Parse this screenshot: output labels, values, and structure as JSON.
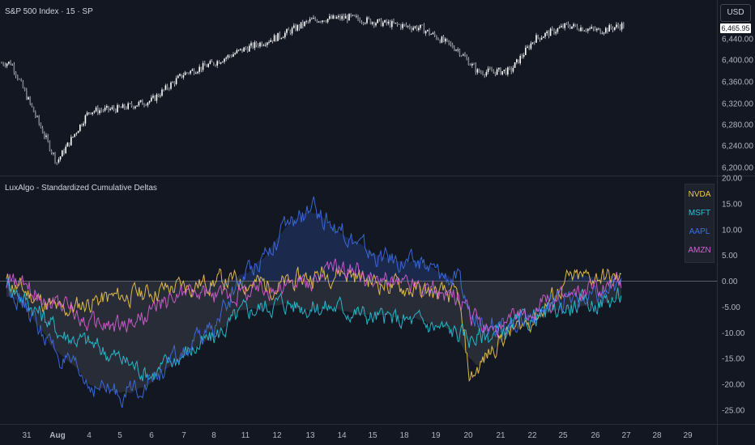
{
  "price_pane": {
    "title": "S&P 500 Index · 15 · SP",
    "currency_label": "USD",
    "last_price": "6,465.95",
    "y_axis_labels": [
      "6,440.00",
      "6,400.00",
      "6,360.00",
      "6,320.00",
      "6,280.00",
      "6,240.00",
      "6,200.00"
    ]
  },
  "indicator_pane": {
    "title": "LuxAlgo - Standardized Cumulative Deltas",
    "y_axis_labels": [
      "20.00",
      "15.00",
      "10.00",
      "5.00",
      "0.00",
      "-5.00",
      "-10.00",
      "-15.00",
      "-20.00",
      "-25.00"
    ]
  },
  "x_axis": {
    "labels": [
      "31",
      "Aug",
      "4",
      "5",
      "6",
      "7",
      "8",
      "11",
      "12",
      "13",
      "14",
      "15",
      "18",
      "19",
      "20",
      "21",
      "22",
      "25",
      "26",
      "27",
      "28",
      "29"
    ]
  },
  "legend": [
    {
      "label": "NVDA",
      "color": "#f2c94c"
    },
    {
      "label": "MSFT",
      "color": "#26c6da"
    },
    {
      "label": "AAPL",
      "color": "#3d6fe8"
    },
    {
      "label": "AMZN",
      "color": "#d65fd6"
    }
  ],
  "chart_data": [
    {
      "type": "candlestick",
      "title": "S&P 500 Index · 15 · SP",
      "ylim": [
        6180,
        6480
      ],
      "x": [
        "31",
        "Aug",
        "4",
        "5",
        "6",
        "7",
        "8",
        "11",
        "12",
        "13",
        "14",
        "15",
        "18",
        "19",
        "20",
        "21",
        "22",
        "25",
        "26",
        "27"
      ],
      "y": [
        6395,
        6210,
        6305,
        6310,
        6325,
        6375,
        6395,
        6420,
        6445,
        6475,
        6480,
        6470,
        6460,
        6420,
        6378,
        6380,
        6440,
        6465,
        6455,
        6466
      ],
      "last_price": 6465.95
    },
    {
      "type": "line",
      "title": "LuxAlgo - Standardized Cumulative Deltas",
      "ylim": [
        -27,
        21
      ],
      "x": [
        "31",
        "Aug",
        "4",
        "5",
        "6",
        "7",
        "8",
        "11",
        "12",
        "13",
        "14",
        "15",
        "18",
        "19",
        "20",
        "21",
        "22",
        "25",
        "26",
        "27"
      ],
      "series": [
        {
          "name": "NVDA",
          "values": [
            0,
            -6,
            -4,
            -3,
            -2,
            -1,
            0,
            0,
            -1,
            1,
            2,
            0,
            -2,
            -3,
            -19,
            -11,
            -7,
            0,
            1,
            0
          ]
        },
        {
          "name": "MSFT",
          "values": [
            0,
            -10,
            -12,
            -15,
            -18,
            -14,
            -11,
            -6,
            -4,
            -5,
            -5,
            -7,
            -8,
            -10,
            -11,
            -10,
            -7,
            -5,
            -4,
            -3
          ]
        },
        {
          "name": "AAPL",
          "values": [
            0,
            -15,
            -20,
            -22,
            -19,
            -14,
            -9,
            1,
            9,
            14,
            10,
            5,
            3,
            0,
            -6,
            -9,
            -6,
            -4,
            -3,
            -1
          ]
        },
        {
          "name": "AMZN",
          "values": [
            0,
            -4,
            -8,
            -9,
            -6,
            -2,
            -3,
            -2,
            -1,
            0,
            3,
            0,
            -1,
            -3,
            -7,
            -10,
            -5,
            -3,
            -1,
            0
          ]
        }
      ]
    }
  ]
}
